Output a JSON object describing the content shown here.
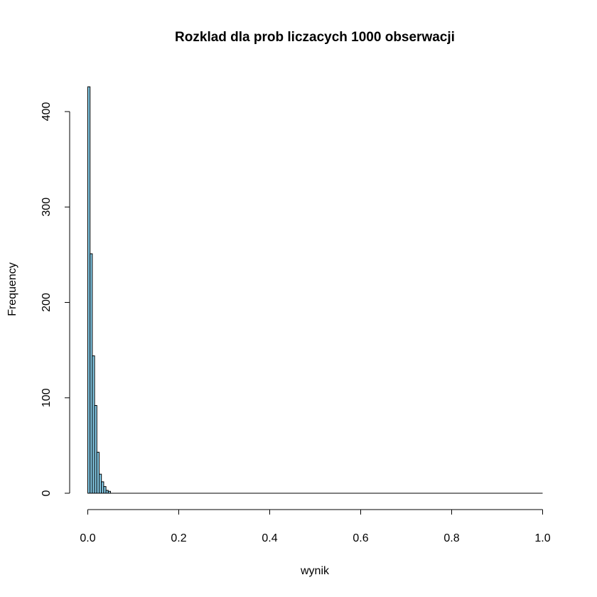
{
  "chart_data": {
    "type": "bar",
    "title": "Rozklad dla prob liczacych 1000 obserwacji",
    "xlabel": "wynik",
    "ylabel": "Frequency",
    "xlim": [
      0,
      1
    ],
    "ylim": [
      0,
      400
    ],
    "x_ticks": [
      "0.0",
      "0.2",
      "0.4",
      "0.6",
      "0.8",
      "1.0"
    ],
    "y_ticks": [
      "0",
      "100",
      "200",
      "300",
      "400"
    ],
    "bin_width": 0.005,
    "bins": [
      {
        "start": 0.0,
        "end": 0.005,
        "count": 426
      },
      {
        "start": 0.005,
        "end": 0.01,
        "count": 251
      },
      {
        "start": 0.01,
        "end": 0.015,
        "count": 144
      },
      {
        "start": 0.015,
        "end": 0.02,
        "count": 92
      },
      {
        "start": 0.02,
        "end": 0.025,
        "count": 43
      },
      {
        "start": 0.025,
        "end": 0.03,
        "count": 20
      },
      {
        "start": 0.03,
        "end": 0.035,
        "count": 12
      },
      {
        "start": 0.035,
        "end": 0.04,
        "count": 7
      },
      {
        "start": 0.04,
        "end": 0.045,
        "count": 3
      },
      {
        "start": 0.045,
        "end": 0.05,
        "count": 2
      }
    ],
    "bar_fill": "#87ceeb",
    "bar_stroke": "#000000",
    "grid": false,
    "legend": "none"
  }
}
